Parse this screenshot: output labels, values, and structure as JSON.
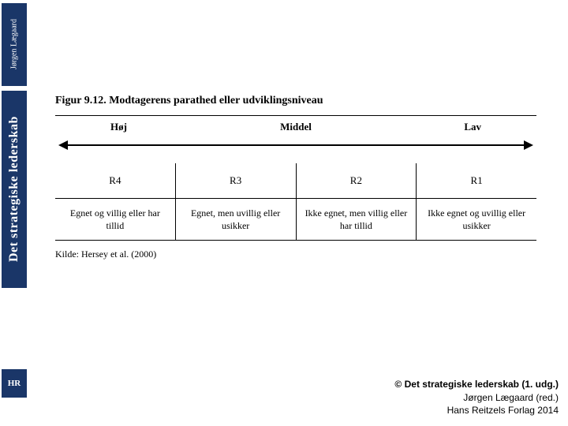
{
  "sidebar": {
    "author": "Jørgen Lægaard",
    "title": "Det strategiske lederskab",
    "logo": "HR"
  },
  "figure": {
    "title": "Figur 9.12. Modtagerens parathed eller udviklingsniveau",
    "scale": {
      "high": "Høj",
      "mid": "Middel",
      "low": "Lav"
    },
    "levels": [
      "R4",
      "R3",
      "R2",
      "R1"
    ],
    "descriptions": [
      "Egnet og villig eller har tillid",
      "Egnet, men uvillig eller usikker",
      "Ikke egnet, men villig eller har tillid",
      "Ikke egnet og uvillig eller usikker"
    ],
    "source": "Kilde: Hersey et al. (2000)"
  },
  "footer": {
    "line1": "© Det strategiske lederskab (1. udg.)",
    "line2": "Jørgen Lægaard (red.)",
    "line3": "Hans Reitzels Forlag 2014"
  },
  "style": {
    "sidebar_bg": "#1a3668",
    "sidebar_fg": "#ffffff",
    "border_color": "#000000",
    "title_fontsize_pt": 14,
    "cell_fontsize_pt": 13,
    "desc_fontsize_pt": 12,
    "footer_fontsize_pt": 12
  }
}
